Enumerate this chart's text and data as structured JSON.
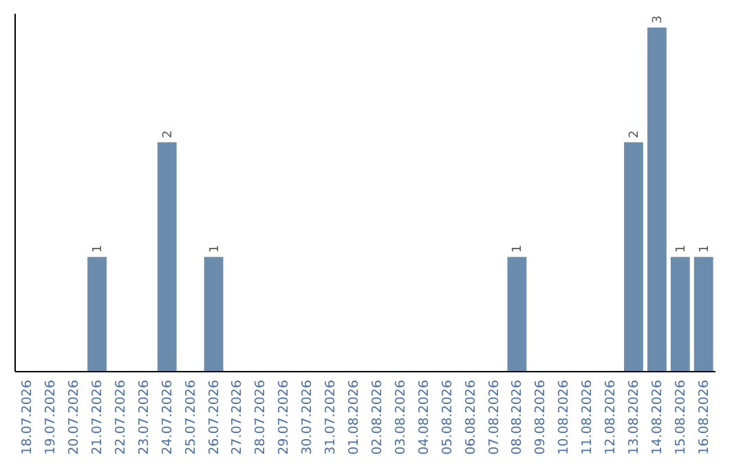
{
  "chart_data": {
    "type": "bar",
    "categories": [
      "18.07.2026",
      "19.07.2026",
      "20.07.2026",
      "21.07.2026",
      "22.07.2026",
      "23.07.2026",
      "24.07.2026",
      "25.07.2026",
      "26.07.2026",
      "27.07.2026",
      "28.07.2026",
      "29.07.2026",
      "30.07.2026",
      "31.07.2026",
      "01.08.2026",
      "02.08.2026",
      "03.08.2026",
      "04.08.2026",
      "05.08.2026",
      "06.08.2026",
      "07.08.2026",
      "08.08.2026",
      "09.08.2026",
      "10.08.2026",
      "11.08.2026",
      "12.08.2026",
      "13.08.2026",
      "14.08.2026",
      "15.08.2026",
      "16.08.2026"
    ],
    "values": [
      0,
      0,
      0,
      1,
      0,
      0,
      2,
      0,
      1,
      0,
      0,
      0,
      0,
      0,
      0,
      0,
      0,
      0,
      0,
      0,
      0,
      1,
      0,
      0,
      0,
      0,
      2,
      3,
      1,
      1
    ],
    "value_labels": [
      null,
      null,
      null,
      "1",
      null,
      null,
      "2",
      null,
      "1",
      null,
      null,
      null,
      null,
      null,
      null,
      null,
      null,
      null,
      null,
      null,
      null,
      "1",
      null,
      null,
      null,
      null,
      "2",
      "3",
      "1",
      "1"
    ],
    "color": "#6b8cac",
    "ylim": [
      0,
      3.12
    ],
    "tick_labels": "x"
  }
}
